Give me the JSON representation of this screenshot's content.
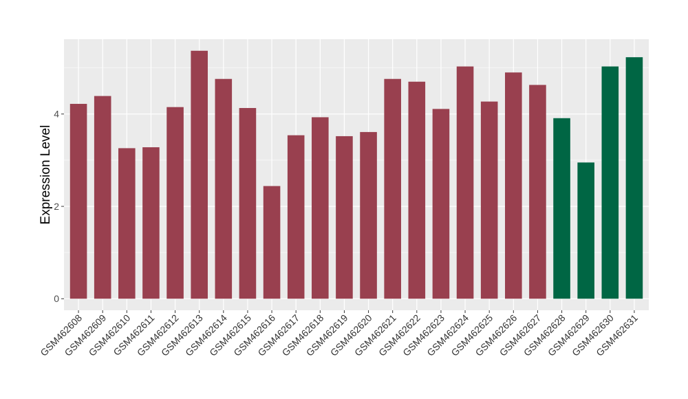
{
  "chart_data": {
    "type": "bar",
    "title": "",
    "xlabel": "",
    "ylabel": "Expression Level",
    "ylim": [
      -0.25,
      5.62
    ],
    "yticks": [
      0,
      2,
      4
    ],
    "grid": true,
    "legend": "none",
    "colors": {
      "group_a": "#99404f",
      "group_b": "#006644",
      "panel_bg": "#ebebeb",
      "grid": "#ffffff"
    },
    "categories": [
      "GSM462608",
      "GSM462609",
      "GSM462610",
      "GSM462611",
      "GSM462612",
      "GSM462613",
      "GSM462614",
      "GSM462615",
      "GSM462616",
      "GSM462617",
      "GSM462618",
      "GSM462619",
      "GSM462620",
      "GSM462621",
      "GSM462622",
      "GSM462623",
      "GSM462624",
      "GSM462625",
      "GSM462626",
      "GSM462627",
      "GSM462628",
      "GSM462629",
      "GSM462630",
      "GSM462631"
    ],
    "values": [
      4.22,
      4.39,
      3.26,
      3.28,
      4.15,
      5.37,
      4.76,
      4.13,
      2.44,
      3.54,
      3.93,
      3.52,
      3.61,
      4.76,
      4.7,
      4.11,
      5.03,
      4.27,
      4.9,
      4.63,
      3.91,
      2.95,
      5.03,
      5.23
    ],
    "bar_groups": [
      "a",
      "a",
      "a",
      "a",
      "a",
      "a",
      "a",
      "a",
      "a",
      "a",
      "a",
      "a",
      "a",
      "a",
      "a",
      "a",
      "a",
      "a",
      "a",
      "a",
      "b",
      "b",
      "b",
      "b"
    ]
  }
}
